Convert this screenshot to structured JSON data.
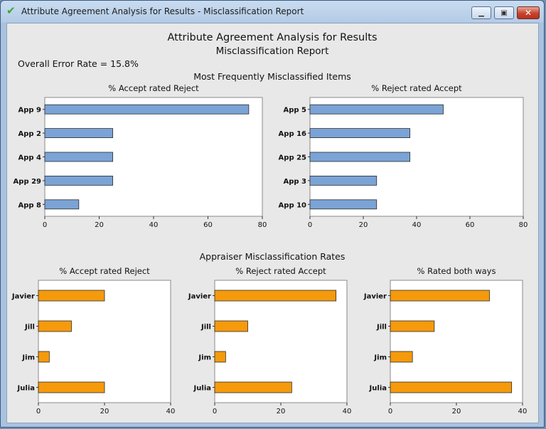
{
  "window": {
    "title": "Attribute Agreement Analysis for Results - Misclassification Report",
    "icon": "checkmark-icon"
  },
  "report": {
    "title": "Attribute Agreement Analysis for Results",
    "subtitle": "Misclassification Report",
    "overall_error": "Overall Error Rate = 15.8%",
    "items_section_title": "Most Frequently Misclassified Items",
    "appraiser_section_title": "Appraiser Misclassification Rates"
  },
  "colors": {
    "items_bar": "#7ba3d6",
    "appraiser_bar": "#f59a0c",
    "bar_stroke": "#2b2b2b"
  },
  "chart_data": [
    {
      "type": "bar",
      "orientation": "horizontal",
      "title": "% Accept rated Reject",
      "categories": [
        "App 9",
        "App 2",
        "App 4",
        "App 29",
        "App 8"
      ],
      "values": [
        75,
        25,
        25,
        25,
        12.5
      ],
      "xlim": [
        0,
        80
      ],
      "xticks": [
        0,
        20,
        40,
        60,
        80
      ]
    },
    {
      "type": "bar",
      "orientation": "horizontal",
      "title": "% Reject rated Accept",
      "categories": [
        "App 5",
        "App 16",
        "App 25",
        "App 3",
        "App 10"
      ],
      "values": [
        50,
        37.5,
        37.5,
        25,
        25
      ],
      "xlim": [
        0,
        80
      ],
      "xticks": [
        0,
        20,
        40,
        60,
        80
      ]
    },
    {
      "type": "bar",
      "orientation": "horizontal",
      "title": "% Accept rated Reject",
      "categories": [
        "Javier",
        "Jill",
        "Jim",
        "Julia"
      ],
      "values": [
        20,
        10,
        3.3,
        20
      ],
      "xlim": [
        0,
        40
      ],
      "xticks": [
        0,
        20,
        40
      ]
    },
    {
      "type": "bar",
      "orientation": "horizontal",
      "title": "% Reject rated Accept",
      "categories": [
        "Javier",
        "Jill",
        "Jim",
        "Julia"
      ],
      "values": [
        36.7,
        10,
        3.3,
        23.3
      ],
      "xlim": [
        0,
        40
      ],
      "xticks": [
        0,
        20,
        40
      ]
    },
    {
      "type": "bar",
      "orientation": "horizontal",
      "title": "% Rated both ways",
      "categories": [
        "Javier",
        "Jill",
        "Jim",
        "Julia"
      ],
      "values": [
        30,
        13.3,
        6.7,
        36.7
      ],
      "xlim": [
        0,
        40
      ],
      "xticks": [
        0,
        20,
        40
      ]
    }
  ]
}
